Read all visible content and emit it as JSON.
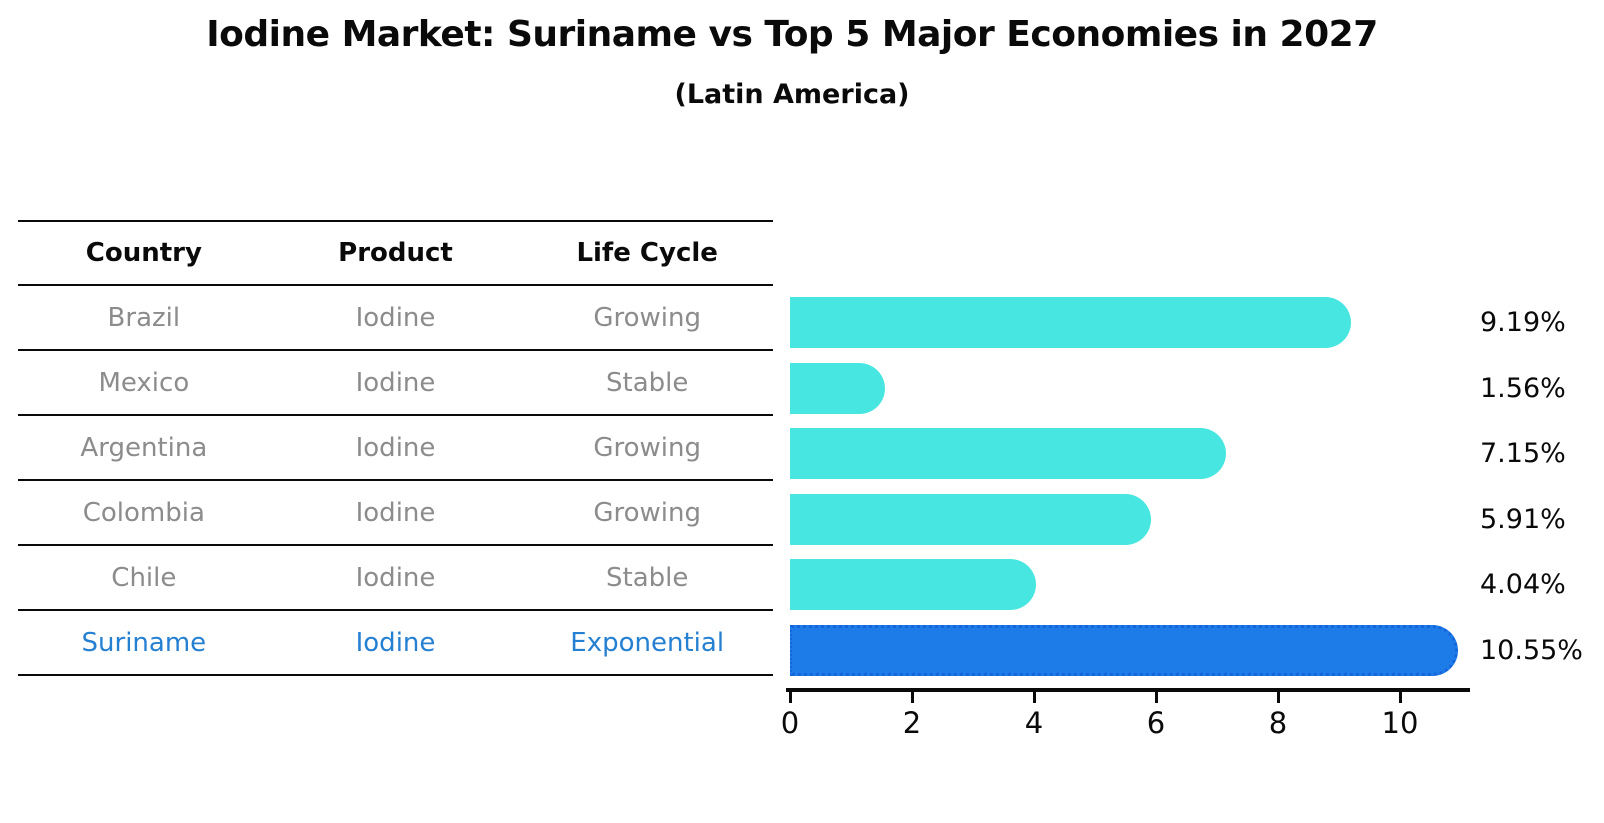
{
  "title": "Iodine Market: Suriname vs Top 5 Major Economies in 2027",
  "subtitle": "(Latin America)",
  "table": {
    "headers": [
      "Country",
      "Product",
      "Life Cycle"
    ],
    "rows": [
      {
        "country": "Brazil",
        "product": "Iodine",
        "life_cycle": "Growing",
        "highlight": false
      },
      {
        "country": "Mexico",
        "product": "Iodine",
        "life_cycle": "Stable",
        "highlight": false
      },
      {
        "country": "Argentina",
        "product": "Iodine",
        "life_cycle": "Growing",
        "highlight": false
      },
      {
        "country": "Colombia",
        "product": "Iodine",
        "life_cycle": "Growing",
        "highlight": false
      },
      {
        "country": "Chile",
        "product": "Iodine",
        "life_cycle": "Stable",
        "highlight": false
      },
      {
        "country": "Suriname",
        "product": "Iodine",
        "life_cycle": "Exponential",
        "highlight": true
      }
    ]
  },
  "chart_data": {
    "type": "bar",
    "orientation": "horizontal",
    "title": "Iodine Market: Suriname vs Top 5 Major Economies in 2027",
    "subtitle": "(Latin America)",
    "categories": [
      "Brazil",
      "Mexico",
      "Argentina",
      "Colombia",
      "Chile",
      "Suriname"
    ],
    "values": [
      9.19,
      1.56,
      7.15,
      5.91,
      4.04,
      10.55
    ],
    "value_labels": [
      "9.19%",
      "1.56%",
      "7.15%",
      "5.91%",
      "4.04%",
      "10.55%"
    ],
    "highlight_category": "Suriname",
    "xticks": [
      "0",
      "2",
      "4",
      "6",
      "8",
      "10"
    ],
    "xtick_values": [
      0,
      2,
      4,
      6,
      8,
      10
    ],
    "xlim": [
      0,
      11.2
    ],
    "grid": false,
    "legend": false,
    "colors": {
      "bar": "#48e6e0",
      "highlight_bar": "#1e7ce9",
      "highlight_border": "#1565dc",
      "highlight_text": "#2680d2",
      "table_text": "#8c8c8c",
      "axis_text": "#0a0a0a"
    }
  }
}
